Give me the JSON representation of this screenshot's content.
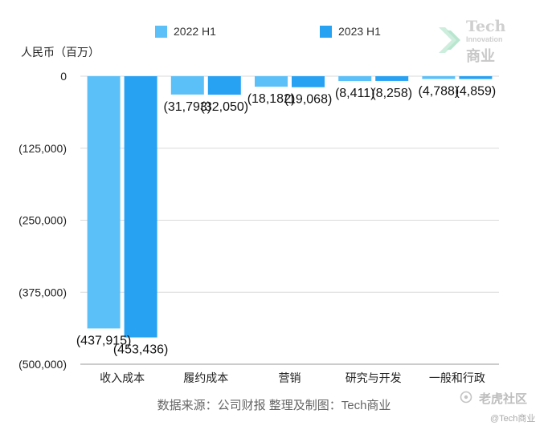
{
  "chart_data": {
    "type": "bar",
    "title": "",
    "xlabel": "",
    "ylabel": "人民币（百万）",
    "categories": [
      "收入成本",
      "履约成本",
      "营销",
      "研究与开发",
      "一般和行政"
    ],
    "series": [
      {
        "name": "2022 H1",
        "color": "#5bc0f8",
        "values": [
          -437915,
          -31793,
          -18182,
          -8411,
          -4788
        ],
        "labels": [
          "(437,915)",
          "(31,793)",
          "(18,182)",
          "(8,411)",
          "(4,788)"
        ]
      },
      {
        "name": "2023 H1",
        "color": "#27a2f3",
        "values": [
          -453436,
          -32050,
          -19068,
          -8258,
          -4859
        ],
        "labels": [
          "(453,436)",
          "(32,050)",
          "(19,068)",
          "(8,258)",
          "(4,859)"
        ]
      }
    ],
    "ylim": [
      -500000,
      0
    ],
    "yticks": [
      0,
      -125000,
      -250000,
      -375000,
      -500000
    ],
    "ytick_labels": [
      "0",
      "(125,000)",
      "(250,000)",
      "(375,000)",
      "(500,000)"
    ],
    "grid": true,
    "legend_position": "top"
  },
  "source": "数据来源：公司财报 整理及制图：Tech商业",
  "logo": {
    "line1": "Tech",
    "line2": "Innovation",
    "line3": "商业"
  },
  "watermark": {
    "brand": "老虎社区",
    "handle": "@Tech商业"
  }
}
